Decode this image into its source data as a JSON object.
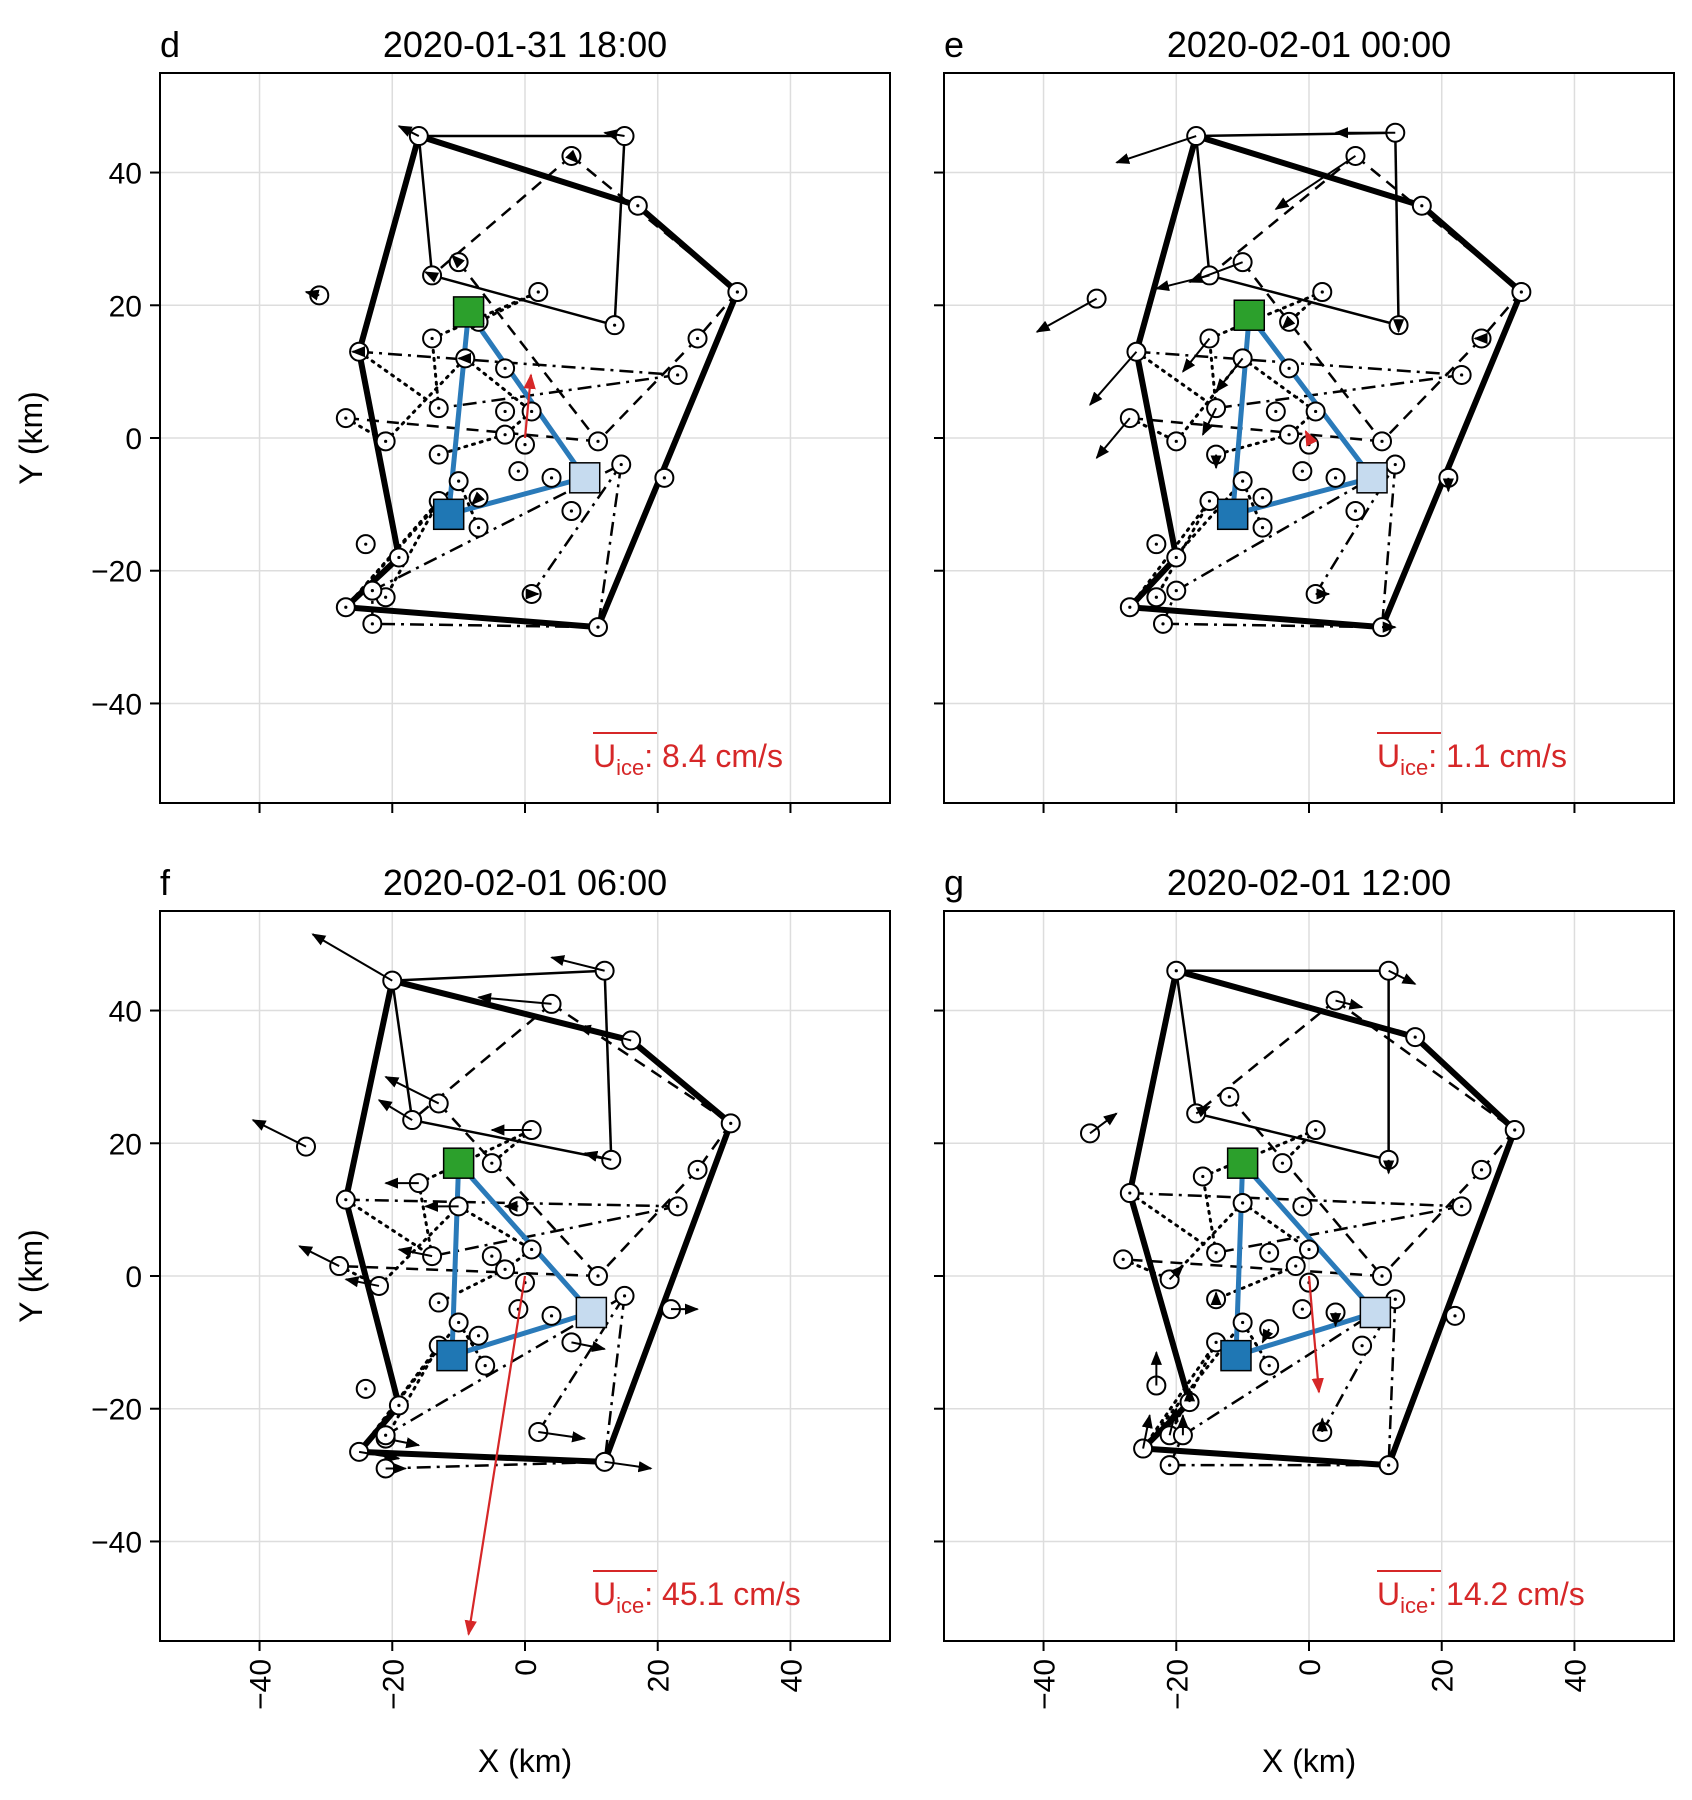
{
  "figure": {
    "x_axis_label": "X (km)",
    "y_axis_label": "Y (km)",
    "mean_speed_symbol": "U",
    "mean_speed_subscript": "ice",
    "colors": {
      "outer_polygon": "#000000",
      "triangle": "#2a7ab9",
      "square_green": "#2ca02c",
      "square_blue": "#1f77b4",
      "square_lightblue": "#c6dbef",
      "mean_arrow": "#d62728",
      "speed_text": "#d62728"
    }
  },
  "chart_data": [
    {
      "type": "scatter",
      "panel_letter": "d",
      "title": "2020-01-31 18:00",
      "xlabel": "",
      "ylabel": "Y (km)",
      "xlim": [
        -55,
        55
      ],
      "ylim": [
        -55,
        55
      ],
      "xticks": [
        -40,
        -20,
        0,
        20,
        40
      ],
      "yticks": [
        -40,
        -20,
        0,
        20,
        40
      ],
      "grid": true,
      "mean_speed_label": ": 8.4 cm/s",
      "mean_vector": [
        0.9,
        9.5
      ],
      "buoys": [
        [
          -16,
          45.5,
          -3,
          1.5
        ],
        [
          15,
          45.5,
          -3,
          0.5
        ],
        [
          7,
          42.5,
          1,
          -1
        ],
        [
          17,
          35,
          0,
          0
        ],
        [
          32,
          22,
          0,
          0
        ],
        [
          -14,
          24.5,
          -1,
          0.5
        ],
        [
          -10,
          26.5,
          -1,
          1
        ],
        [
          2,
          22,
          0,
          0
        ],
        [
          -31,
          21.5,
          -2,
          0.5
        ],
        [
          13.5,
          17,
          0,
          0
        ],
        [
          -7,
          17.5,
          -1,
          -1
        ],
        [
          -25,
          13,
          -1,
          0
        ],
        [
          -14,
          15,
          0,
          0
        ],
        [
          -9,
          12,
          -1,
          0
        ],
        [
          -3,
          10.5,
          0,
          0
        ],
        [
          26,
          15,
          0,
          0
        ],
        [
          23,
          9.5,
          0,
          0
        ],
        [
          -27,
          3,
          0,
          0
        ],
        [
          -13,
          4.5,
          0,
          0
        ],
        [
          -3,
          4,
          0,
          0
        ],
        [
          1,
          4,
          0,
          0
        ],
        [
          -21,
          -0.5,
          0,
          0
        ],
        [
          -3,
          0.5,
          0,
          0
        ],
        [
          0,
          -1,
          0,
          0
        ],
        [
          11,
          -0.5,
          0,
          0
        ],
        [
          -13,
          -2.5,
          0,
          0
        ],
        [
          -1,
          -5,
          0,
          0
        ],
        [
          14.5,
          -4,
          0,
          0
        ],
        [
          -10,
          -6.5,
          0,
          0
        ],
        [
          4,
          -6,
          0,
          0
        ],
        [
          -13,
          -9.5,
          0,
          0
        ],
        [
          -7,
          -9,
          -1,
          -1
        ],
        [
          7,
          -11,
          0,
          0
        ],
        [
          -7,
          -13.5,
          0,
          0
        ],
        [
          21,
          -6,
          0,
          0
        ],
        [
          -24,
          -16,
          0,
          0
        ],
        [
          -19,
          -18,
          0,
          0
        ],
        [
          -21,
          -24,
          0,
          0
        ],
        [
          -23,
          -23,
          0,
          0
        ],
        [
          -27,
          -25.5,
          0,
          0
        ],
        [
          1,
          -23.5,
          1,
          0
        ],
        [
          -23,
          -28,
          0,
          0
        ],
        [
          11,
          -28.5,
          0,
          0
        ]
      ],
      "squares": [
        [
          -8.5,
          19,
          "green"
        ],
        [
          -11.5,
          -11.5,
          "blue"
        ],
        [
          9,
          -6,
          "lightblue"
        ]
      ]
    },
    {
      "type": "scatter",
      "panel_letter": "e",
      "title": "2020-02-01 00:00",
      "xlabel": "",
      "ylabel": "",
      "xlim": [
        -55,
        55
      ],
      "ylim": [
        -55,
        55
      ],
      "xticks": [
        -40,
        -20,
        0,
        20,
        40
      ],
      "yticks": [
        -40,
        -20,
        0,
        20,
        40
      ],
      "grid": true,
      "mean_speed_label": ": 1.1 cm/s",
      "mean_vector": [
        -0.5,
        1
      ],
      "buoys": [
        [
          -17,
          45.5,
          -12,
          -4
        ],
        [
          13,
          46,
          -9,
          0
        ],
        [
          7,
          42.5,
          -12,
          -8
        ],
        [
          17,
          35,
          0,
          0
        ],
        [
          32,
          22,
          0,
          0
        ],
        [
          -15,
          24.5,
          -8,
          -2
        ],
        [
          -10,
          26.5,
          -8,
          -3
        ],
        [
          2,
          22,
          0,
          0
        ],
        [
          -32,
          21,
          -9,
          -5
        ],
        [
          13.5,
          17,
          0,
          -1
        ],
        [
          -3,
          17.5,
          -1,
          -1
        ],
        [
          -26,
          13,
          -7,
          -8
        ],
        [
          -15,
          15,
          -4,
          -5
        ],
        [
          -10,
          12,
          -4,
          -5
        ],
        [
          -3,
          10.5,
          0,
          0
        ],
        [
          26,
          15,
          -1,
          0
        ],
        [
          23,
          9.5,
          0,
          0
        ],
        [
          -27,
          3,
          -5,
          -6
        ],
        [
          -14,
          4.5,
          -2,
          -4
        ],
        [
          -5,
          4,
          0,
          0
        ],
        [
          1,
          4,
          0,
          0
        ],
        [
          -20,
          -0.5,
          0,
          0
        ],
        [
          -3,
          0.5,
          0,
          0
        ],
        [
          0,
          -1,
          0,
          0
        ],
        [
          11,
          -0.5,
          0,
          0
        ],
        [
          -14,
          -2.5,
          0,
          -2
        ],
        [
          -1,
          -5,
          0,
          0
        ],
        [
          13,
          -4,
          0,
          0
        ],
        [
          -10,
          -6.5,
          0,
          0
        ],
        [
          4,
          -6,
          0,
          0
        ],
        [
          -15,
          -9.5,
          0,
          0
        ],
        [
          -7,
          -9,
          0,
          0
        ],
        [
          7,
          -11,
          0,
          0
        ],
        [
          -7,
          -13.5,
          0,
          0
        ],
        [
          21,
          -6,
          0,
          -2
        ],
        [
          -23,
          -16,
          0,
          0
        ],
        [
          -20,
          -18,
          0,
          0
        ],
        [
          -23,
          -24,
          0,
          0
        ],
        [
          -20,
          -23,
          0,
          0
        ],
        [
          -27,
          -25.5,
          0,
          0
        ],
        [
          1,
          -23.5,
          2,
          0
        ],
        [
          -22,
          -28,
          0,
          0
        ],
        [
          11,
          -28.5,
          2,
          0
        ]
      ],
      "squares": [
        [
          -9,
          18.5,
          "green"
        ],
        [
          -11.5,
          -11.5,
          "blue"
        ],
        [
          9.5,
          -6,
          "lightblue"
        ]
      ]
    },
    {
      "type": "scatter",
      "panel_letter": "f",
      "title": "2020-02-01 06:00",
      "xlabel": "X (km)",
      "ylabel": "Y (km)",
      "xlim": [
        -55,
        55
      ],
      "ylim": [
        -55,
        55
      ],
      "xticks": [
        -40,
        -20,
        0,
        20,
        40
      ],
      "yticks": [
        -40,
        -20,
        0,
        20,
        40
      ],
      "grid": true,
      "mean_speed_label": ": 45.1 cm/s",
      "mean_vector": [
        -8.5,
        -54
      ],
      "buoys": [
        [
          -20,
          44.5,
          -12,
          7
        ],
        [
          12,
          46,
          -8,
          2
        ],
        [
          4,
          41,
          -11,
          1
        ],
        [
          16,
          35.5,
          -8,
          2
        ],
        [
          31,
          23,
          0,
          0
        ],
        [
          -17,
          23.5,
          -5,
          3
        ],
        [
          -13,
          26,
          -8,
          4
        ],
        [
          1,
          22,
          -6,
          0
        ],
        [
          -33,
          19.5,
          -8,
          4
        ],
        [
          13,
          17.5,
          -4,
          1
        ],
        [
          -5,
          17,
          0,
          0
        ],
        [
          -27,
          11.5,
          0,
          0
        ],
        [
          -16,
          14,
          -5,
          0
        ],
        [
          -10,
          10.5,
          -5,
          0
        ],
        [
          -1,
          10.5,
          -2,
          0
        ],
        [
          26,
          16,
          0,
          0
        ],
        [
          23,
          10.5,
          0,
          0
        ],
        [
          -28,
          1.5,
          -6,
          3
        ],
        [
          -14,
          3,
          -5,
          1
        ],
        [
          -5,
          3,
          0,
          0
        ],
        [
          1,
          4,
          0,
          0
        ],
        [
          -22,
          -1.5,
          -5,
          1
        ],
        [
          -3,
          1,
          0,
          0
        ],
        [
          0,
          -1,
          0,
          0
        ],
        [
          11,
          0,
          0,
          0
        ],
        [
          -13,
          -4,
          0,
          0
        ],
        [
          -1,
          -5,
          0,
          0
        ],
        [
          15,
          -3,
          0,
          0
        ],
        [
          -10,
          -7,
          0,
          0
        ],
        [
          4,
          -6,
          0,
          0
        ],
        [
          -13,
          -10.5,
          0,
          0
        ],
        [
          -7,
          -9,
          0,
          0
        ],
        [
          7,
          -10,
          5,
          -1
        ],
        [
          -6,
          -13.5,
          0,
          0
        ],
        [
          22,
          -5,
          4,
          0
        ],
        [
          -24,
          -17,
          0,
          0
        ],
        [
          -19,
          -19.5,
          0,
          0
        ],
        [
          -21,
          -24.5,
          5,
          -1
        ],
        [
          -21,
          -24,
          0,
          0
        ],
        [
          -25,
          -26.5,
          6,
          -1
        ],
        [
          2,
          -23.5,
          7,
          -1
        ],
        [
          -21,
          -29,
          3,
          0
        ],
        [
          12,
          -28,
          7,
          -1
        ]
      ],
      "squares": [
        [
          -10,
          17,
          "green"
        ],
        [
          -11,
          -12,
          "blue"
        ],
        [
          10,
          -5.5,
          "lightblue"
        ]
      ]
    },
    {
      "type": "scatter",
      "panel_letter": "g",
      "title": "2020-02-01 12:00",
      "xlabel": "X (km)",
      "ylabel": "",
      "xlim": [
        -55,
        55
      ],
      "ylim": [
        -55,
        55
      ],
      "xticks": [
        -40,
        -20,
        0,
        20,
        40
      ],
      "yticks": [
        -40,
        -20,
        0,
        20,
        40
      ],
      "grid": true,
      "mean_speed_label": ": 14.2 cm/s",
      "mean_vector": [
        1.5,
        -17.5
      ],
      "buoys": [
        [
          -20,
          46,
          0,
          0
        ],
        [
          12,
          46,
          4,
          -2
        ],
        [
          4,
          41.5,
          4,
          -1
        ],
        [
          16,
          36,
          0,
          0
        ],
        [
          31,
          22,
          0,
          0
        ],
        [
          -17,
          24.5,
          2,
          1
        ],
        [
          -12,
          27,
          0,
          0
        ],
        [
          1,
          22,
          0,
          0
        ],
        [
          -33,
          21.5,
          4,
          3
        ],
        [
          12,
          17.5,
          0,
          -2
        ],
        [
          -4,
          17,
          0,
          0
        ],
        [
          -27,
          12.5,
          0,
          0
        ],
        [
          -16,
          15,
          0,
          0
        ],
        [
          -10,
          11,
          0,
          0
        ],
        [
          -1,
          10.5,
          0,
          0
        ],
        [
          26,
          16,
          0,
          0
        ],
        [
          23,
          10.5,
          0,
          0
        ],
        [
          -28,
          2.5,
          0,
          0
        ],
        [
          -14,
          3.5,
          0,
          0
        ],
        [
          -6,
          3.5,
          0,
          0
        ],
        [
          0,
          4,
          0,
          0
        ],
        [
          -21,
          -0.5,
          2,
          2
        ],
        [
          -2,
          1.5,
          0,
          0
        ],
        [
          0,
          -1,
          0,
          0
        ],
        [
          11,
          0,
          0,
          0
        ],
        [
          -14,
          -3.5,
          0,
          1
        ],
        [
          -1,
          -5,
          0,
          0
        ],
        [
          13,
          -3.5,
          0,
          0
        ],
        [
          -10,
          -7,
          0,
          0
        ],
        [
          4,
          -5.5,
          0,
          -2
        ],
        [
          -14,
          -10,
          0,
          0
        ],
        [
          -6,
          -8,
          -1,
          -2
        ],
        [
          8,
          -10.5,
          0,
          0
        ],
        [
          -6,
          -13.5,
          0,
          0
        ],
        [
          22,
          -6,
          0,
          0
        ],
        [
          -23,
          -16.5,
          0,
          5
        ],
        [
          -18,
          -19,
          0,
          2
        ],
        [
          -21,
          -24,
          1,
          4
        ],
        [
          -19,
          -24,
          0,
          3
        ],
        [
          -25,
          -26,
          1,
          5
        ],
        [
          2,
          -23.5,
          0,
          2
        ],
        [
          -21,
          -28.5,
          0,
          0
        ],
        [
          12,
          -28.5,
          0,
          0
        ]
      ],
      "squares": [
        [
          -10,
          17,
          "green"
        ],
        [
          -11,
          -12,
          "blue"
        ],
        [
          10,
          -5.5,
          "lightblue"
        ]
      ]
    }
  ]
}
